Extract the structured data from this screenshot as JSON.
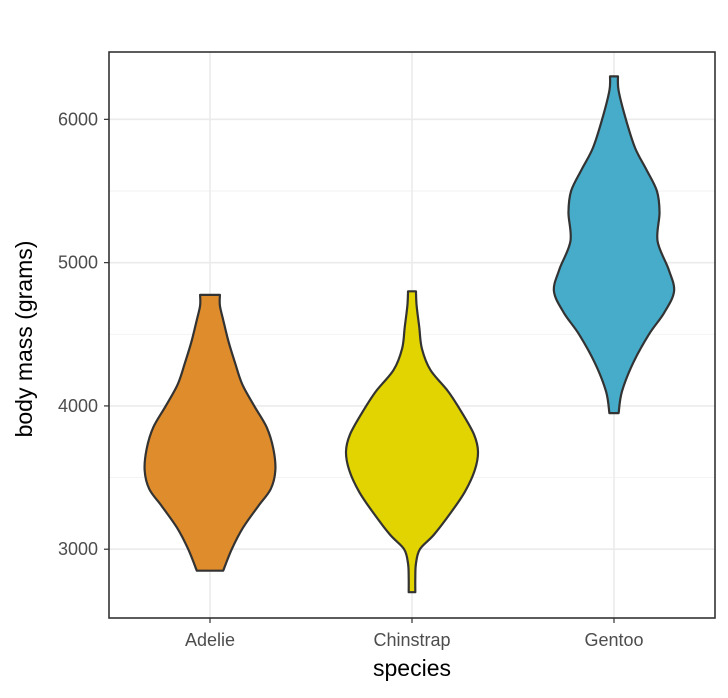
{
  "chart_data": {
    "type": "violin",
    "title": "",
    "xlabel": "species",
    "ylabel": "body mass (grams)",
    "ylim": [
      2520,
      6470
    ],
    "y_ticks": [
      3000,
      4000,
      5000,
      6000
    ],
    "categories": [
      "Adelie",
      "Chinstrap",
      "Gentoo"
    ],
    "grid": true,
    "legend": "none",
    "series": [
      {
        "category": "Adelie",
        "color": "#DE8C2C",
        "min": 2850,
        "max": 4775,
        "profile": [
          [
            2850,
            0.2
          ],
          [
            3000,
            0.33
          ],
          [
            3150,
            0.5
          ],
          [
            3300,
            0.73
          ],
          [
            3420,
            0.92
          ],
          [
            3550,
            0.99
          ],
          [
            3700,
            0.96
          ],
          [
            3850,
            0.86
          ],
          [
            4000,
            0.67
          ],
          [
            4150,
            0.49
          ],
          [
            4300,
            0.38
          ],
          [
            4450,
            0.28
          ],
          [
            4600,
            0.2
          ],
          [
            4700,
            0.15
          ],
          [
            4775,
            0.15
          ]
        ]
      },
      {
        "category": "Chinstrap",
        "color": "#E1D400",
        "min": 2700,
        "max": 4800,
        "profile": [
          [
            2700,
            0.05
          ],
          [
            2800,
            0.05
          ],
          [
            2900,
            0.06
          ],
          [
            3000,
            0.12
          ],
          [
            3100,
            0.33
          ],
          [
            3250,
            0.58
          ],
          [
            3400,
            0.8
          ],
          [
            3550,
            0.95
          ],
          [
            3680,
            1.0
          ],
          [
            3800,
            0.94
          ],
          [
            3950,
            0.76
          ],
          [
            4100,
            0.55
          ],
          [
            4250,
            0.28
          ],
          [
            4400,
            0.15
          ],
          [
            4550,
            0.11
          ],
          [
            4700,
            0.07
          ],
          [
            4800,
            0.06
          ]
        ]
      },
      {
        "category": "Gentoo",
        "color": "#47ACCA",
        "min": 3950,
        "max": 6300,
        "profile": [
          [
            3950,
            0.07
          ],
          [
            4100,
            0.12
          ],
          [
            4300,
            0.29
          ],
          [
            4500,
            0.53
          ],
          [
            4650,
            0.76
          ],
          [
            4800,
            0.91
          ],
          [
            4950,
            0.83
          ],
          [
            5150,
            0.66
          ],
          [
            5350,
            0.69
          ],
          [
            5500,
            0.65
          ],
          [
            5650,
            0.49
          ],
          [
            5800,
            0.32
          ],
          [
            6000,
            0.18
          ],
          [
            6200,
            0.07
          ],
          [
            6300,
            0.06
          ]
        ]
      }
    ]
  }
}
